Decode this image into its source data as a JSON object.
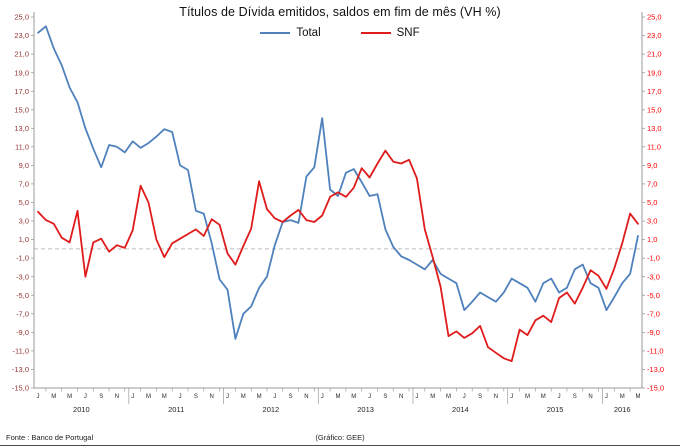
{
  "title": "Títulos de Dívida emitidos, saldos em fim de mês  (VH %)",
  "footer": {
    "source": "Fonte : Banco de Portugal",
    "credit": "(Gráfico: GEE)"
  },
  "chart_data": {
    "type": "line",
    "title": "Títulos de Dívida emitidos, saldos em fim de mês (VH %)",
    "x_unit": "month",
    "x_start": "2010-01",
    "x_end": "2016-05",
    "x_tick_month_letters": [
      "J",
      "M",
      "M",
      "J",
      "S",
      "N"
    ],
    "year_labels": [
      "2010",
      "2011",
      "2012",
      "2013",
      "2014",
      "2015",
      "2016"
    ],
    "ylim": [
      -15,
      25
    ],
    "ytick_step": 2,
    "grid": "zero-line-only",
    "legend_position": "top",
    "axis_colors": {
      "left": "#953735",
      "right": "#FF0000"
    },
    "series": [
      {
        "name": "Total",
        "color": "#4F81BD",
        "values": [
          23.3,
          24.0,
          21.6,
          19.8,
          17.4,
          15.8,
          13.0,
          10.8,
          8.8,
          11.2,
          11.0,
          10.4,
          11.6,
          10.9,
          11.4,
          12.1,
          12.9,
          12.6,
          9.0,
          8.5,
          4.1,
          3.8,
          0.6,
          -3.3,
          -4.4,
          -9.7,
          -7.0,
          -6.2,
          -4.2,
          -3.0,
          0.4,
          2.9,
          3.1,
          2.8,
          7.8,
          8.8,
          14.1,
          6.4,
          5.7,
          8.2,
          8.6,
          7.2,
          5.7,
          5.9,
          2.1,
          0.2,
          -0.8,
          -1.2,
          -1.7,
          -2.2,
          -1.2,
          -2.7,
          -3.2,
          -3.7,
          -6.6,
          -5.7,
          -4.7,
          -5.2,
          -5.7,
          -4.7,
          -3.2,
          -3.7,
          -4.2,
          -5.7,
          -3.7,
          -3.2,
          -4.7,
          -4.2,
          -2.2,
          -1.7,
          -3.7,
          -4.2,
          -6.6,
          -5.2,
          -3.7,
          -2.7,
          1.4
        ]
      },
      {
        "name": "SNF",
        "color": "#E01B1B",
        "values": [
          4.0,
          3.1,
          2.7,
          1.2,
          0.7,
          4.1,
          -3.0,
          0.7,
          1.1,
          -0.3,
          0.4,
          0.1,
          2.0,
          6.8,
          5.0,
          1.0,
          -0.9,
          0.6,
          1.1,
          1.6,
          2.1,
          1.4,
          3.2,
          2.6,
          -0.5,
          -1.7,
          0.3,
          2.2,
          7.3,
          4.3,
          3.3,
          2.9,
          3.6,
          4.2,
          3.1,
          2.9,
          3.6,
          5.6,
          6.1,
          5.6,
          6.6,
          8.7,
          7.7,
          9.2,
          10.6,
          9.4,
          9.2,
          9.6,
          7.6,
          2.1,
          -0.9,
          -4.1,
          -9.4,
          -8.9,
          -9.6,
          -9.1,
          -8.3,
          -10.6,
          -11.2,
          -11.8,
          -12.1,
          -8.7,
          -9.3,
          -7.7,
          -7.2,
          -7.9,
          -5.3,
          -4.7,
          -5.9,
          -4.2,
          -2.3,
          -2.9,
          -4.3,
          -2.1,
          0.6,
          3.8,
          2.7
        ]
      }
    ]
  }
}
